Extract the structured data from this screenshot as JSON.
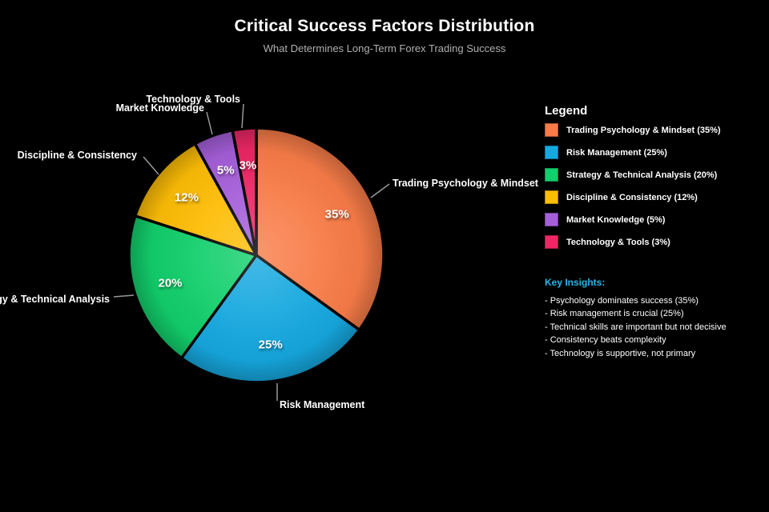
{
  "header": {
    "title": "Critical Success Factors Distribution",
    "subtitle": "What Determines Long-Term Forex Trading Success"
  },
  "chart_data": {
    "type": "pie",
    "title": "Critical Success Factors Distribution",
    "subtitle": "What Determines Long-Term Forex Trading Success",
    "start_angle": "12 o'clock, clockwise",
    "slices": [
      {
        "label": "Trading Psychology & Mindset",
        "value": 35,
        "pct_label": "35%",
        "color": "#F87C48"
      },
      {
        "label": "Risk Management",
        "value": 25,
        "pct_label": "25%",
        "color": "#16A8DF"
      },
      {
        "label": "Strategy & Technical Analysis",
        "value": 20,
        "pct_label": "20%",
        "color": "#12CF6C"
      },
      {
        "label": "Discipline & Consistency",
        "value": 12,
        "pct_label": "12%",
        "color": "#FDBD06"
      },
      {
        "label": "Market Knowledge",
        "value": 5,
        "pct_label": "5%",
        "color": "#A55FD9"
      },
      {
        "label": "Technology & Tools",
        "value": 3,
        "pct_label": "3%",
        "color": "#EC2766"
      }
    ]
  },
  "legend": {
    "title": "Legend",
    "items": [
      {
        "label": "Trading Psychology & Mindset (35%)",
        "color": "#F87C48"
      },
      {
        "label": "Risk Management (25%)",
        "color": "#16A8DF"
      },
      {
        "label": "Strategy & Technical Analysis (20%)",
        "color": "#12CF6C"
      },
      {
        "label": "Discipline & Consistency (12%)",
        "color": "#FDBD06"
      },
      {
        "label": "Market Knowledge (5%)",
        "color": "#A55FD9"
      },
      {
        "label": "Technology & Tools (3%)",
        "color": "#EC2766"
      }
    ]
  },
  "insights": {
    "title": "Key Insights:",
    "title_color": "#29B6E8",
    "items": [
      "- Psychology dominates success (35%)",
      "- Risk management is crucial (25%)",
      "- Technical skills are important but not decisive",
      "- Consistency beats complexity",
      "- Technology is supportive, not primary"
    ]
  }
}
